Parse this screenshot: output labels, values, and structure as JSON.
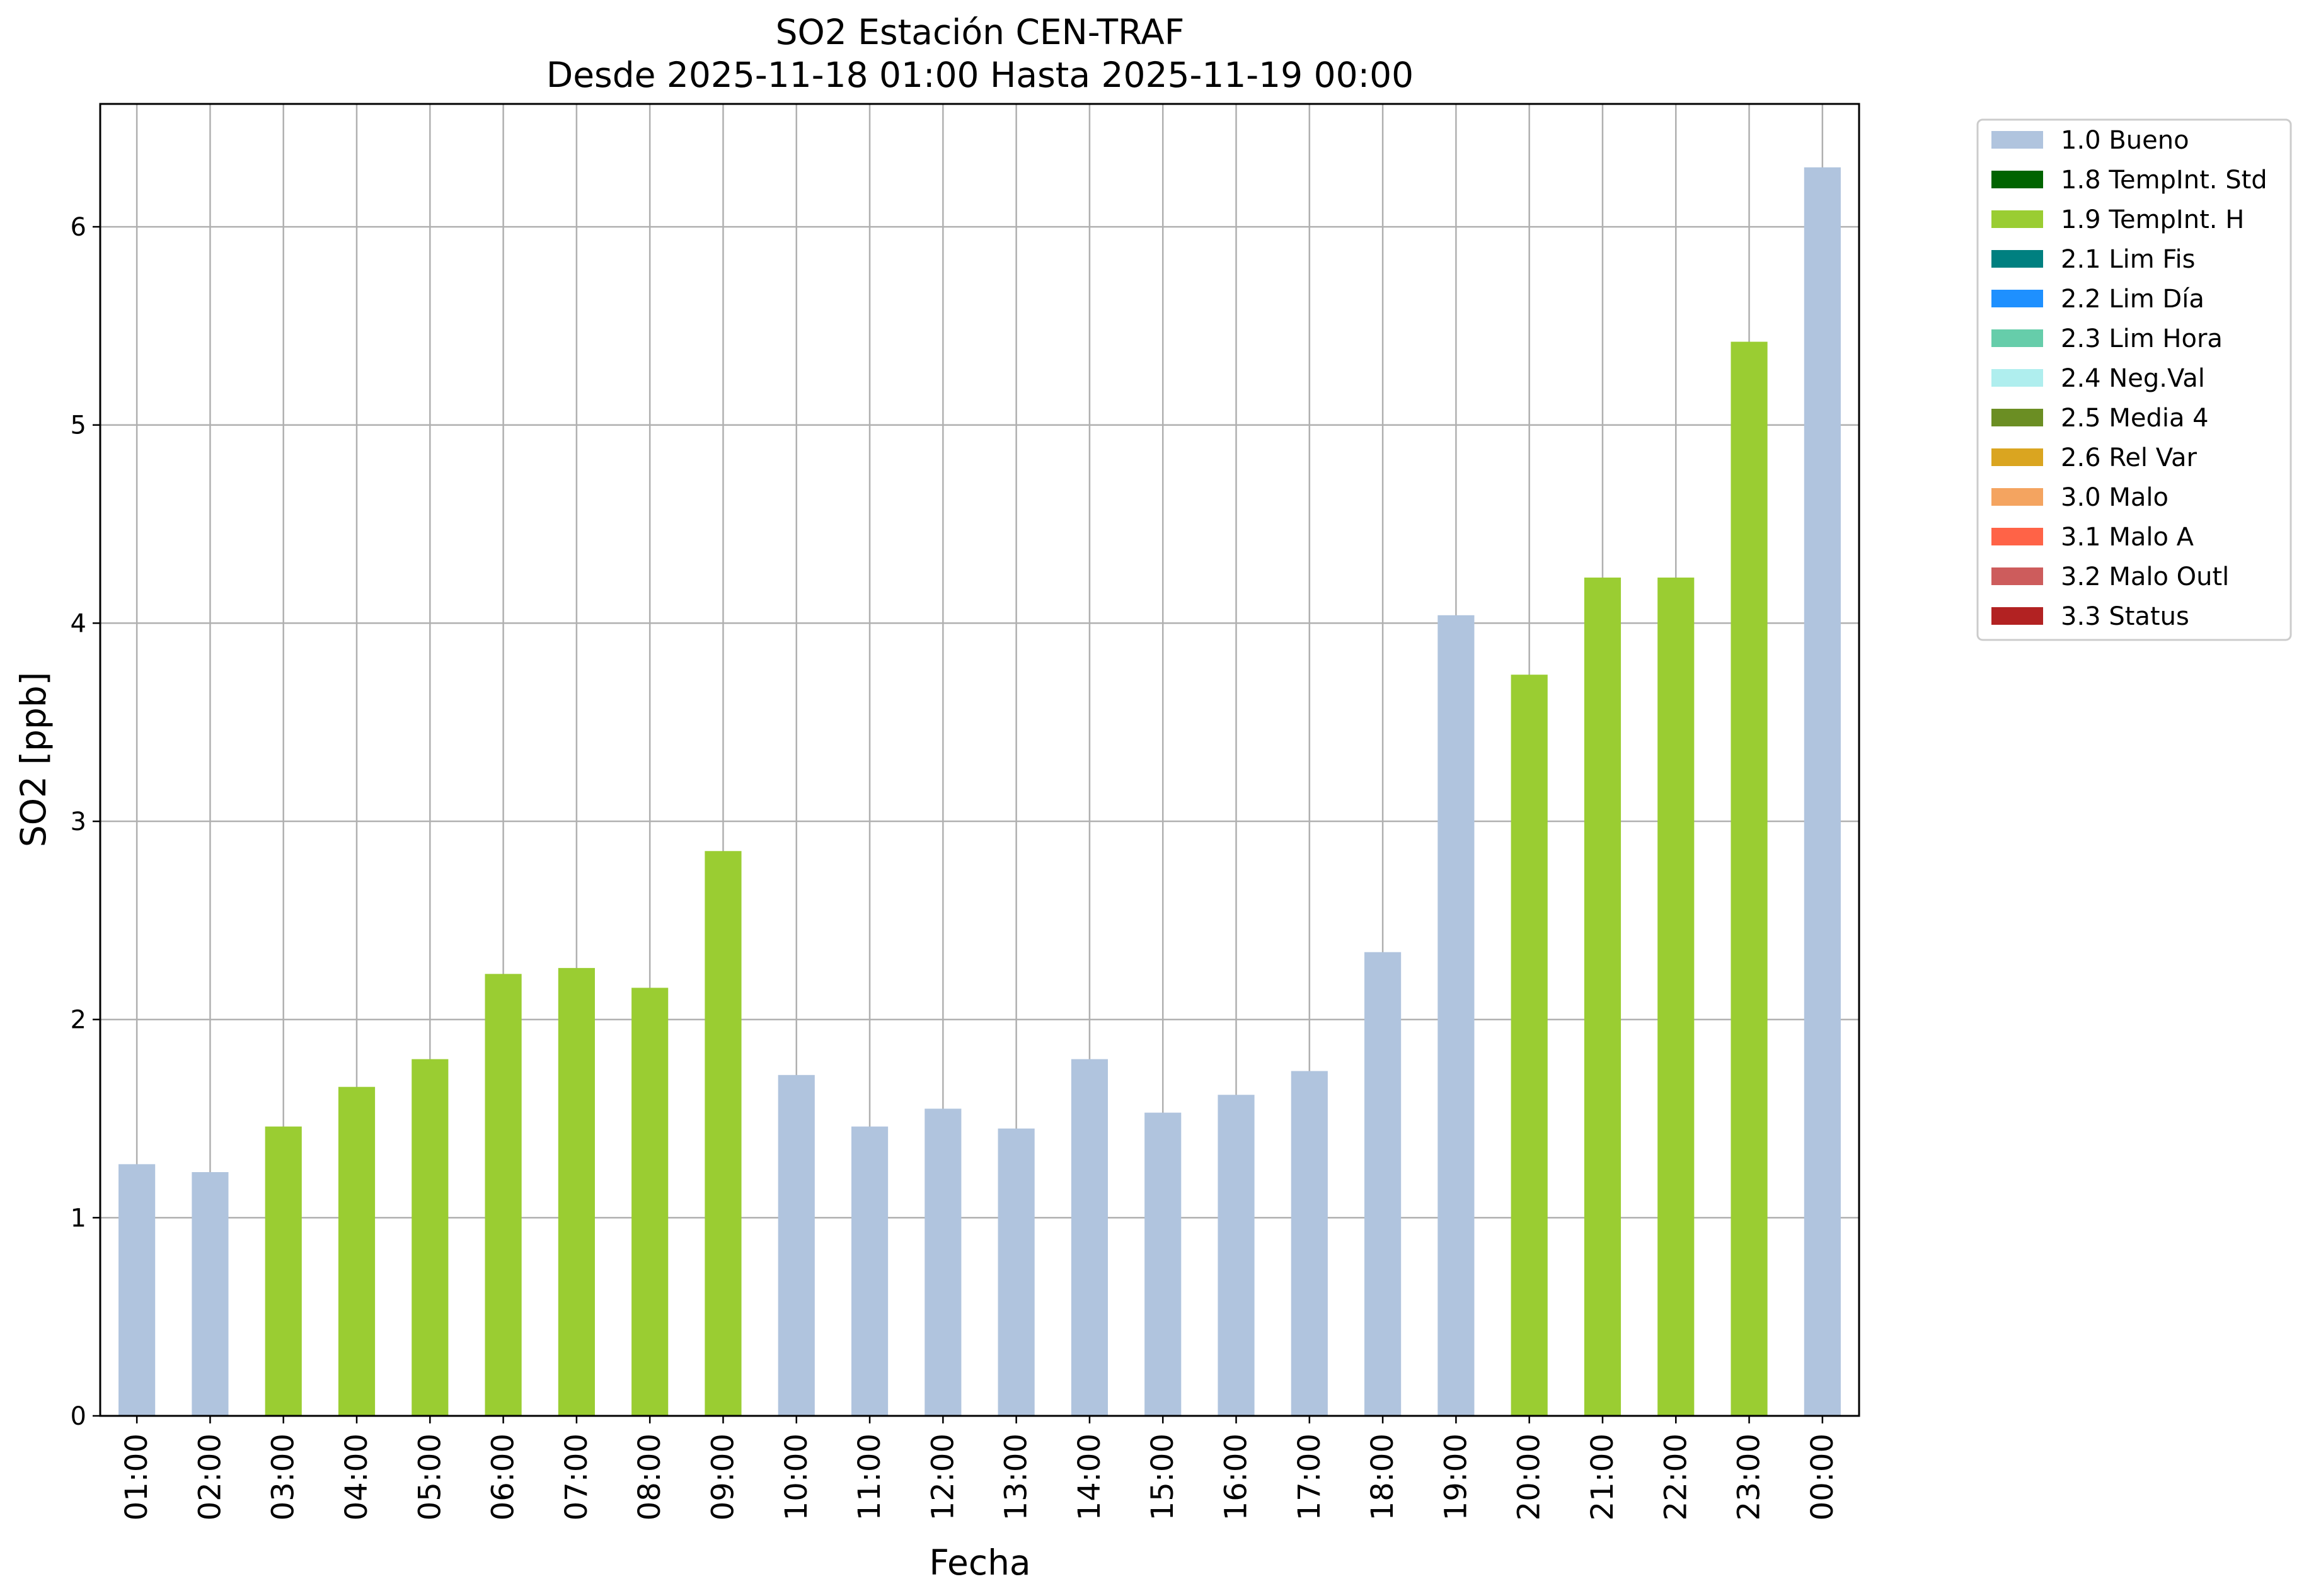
{
  "chart_data": {
    "type": "bar",
    "title": "SO2 Estación CEN-TRAF",
    "subtitle": "Desde 2025-11-18 01:00 Hasta 2025-11-19 00:00",
    "xlabel": "Fecha",
    "ylabel": "SO2 [ppb]",
    "ylim": [
      0,
      6.62
    ],
    "yticks": [
      "0",
      "1",
      "2",
      "3",
      "4",
      "5",
      "6"
    ],
    "grid": true,
    "legend_position": "outside-top-right",
    "categories": [
      "01:00",
      "02:00",
      "03:00",
      "04:00",
      "05:00",
      "06:00",
      "07:00",
      "08:00",
      "09:00",
      "10:00",
      "11:00",
      "12:00",
      "13:00",
      "14:00",
      "15:00",
      "16:00",
      "17:00",
      "18:00",
      "19:00",
      "20:00",
      "21:00",
      "22:00",
      "23:00",
      "00:00"
    ],
    "values": [
      1.27,
      1.23,
      1.46,
      1.66,
      1.8,
      2.23,
      2.26,
      2.16,
      2.85,
      1.72,
      1.46,
      1.55,
      1.45,
      1.8,
      1.53,
      1.62,
      1.74,
      2.34,
      4.04,
      3.74,
      4.23,
      4.23,
      5.42,
      6.3
    ],
    "flags": [
      "1.0 Bueno",
      "1.0 Bueno",
      "1.9 TempInt. H",
      "1.9 TempInt. H",
      "1.9 TempInt. H",
      "1.9 TempInt. H",
      "1.9 TempInt. H",
      "1.9 TempInt. H",
      "1.9 TempInt. H",
      "1.0 Bueno",
      "1.0 Bueno",
      "1.0 Bueno",
      "1.0 Bueno",
      "1.0 Bueno",
      "1.0 Bueno",
      "1.0 Bueno",
      "1.0 Bueno",
      "1.0 Bueno",
      "1.0 Bueno",
      "1.9 TempInt. H",
      "1.9 TempInt. H",
      "1.9 TempInt. H",
      "1.9 TempInt. H",
      "1.0 Bueno"
    ],
    "legend": [
      {
        "label": "1.0 Bueno",
        "color": "#b0c4de"
      },
      {
        "label": "1.8 TempInt. Std",
        "color": "#006400"
      },
      {
        "label": "1.9 TempInt. H",
        "color": "#9acd32"
      },
      {
        "label": "2.1 Lim Fis",
        "color": "#008080"
      },
      {
        "label": "2.2 Lim Día",
        "color": "#1e90ff"
      },
      {
        "label": "2.3 Lim Hora",
        "color": "#66cdaa"
      },
      {
        "label": "2.4 Neg.Val",
        "color": "#afeeee"
      },
      {
        "label": "2.5 Media 4",
        "color": "#6b8e23"
      },
      {
        "label": "2.6 Rel Var",
        "color": "#daa520"
      },
      {
        "label": "3.0 Malo",
        "color": "#f4a460"
      },
      {
        "label": "3.1 Malo A",
        "color": "#ff6347"
      },
      {
        "label": "3.2 Malo Outl",
        "color": "#cd5c5c"
      },
      {
        "label": "3.3 Status",
        "color": "#b22222"
      }
    ]
  }
}
